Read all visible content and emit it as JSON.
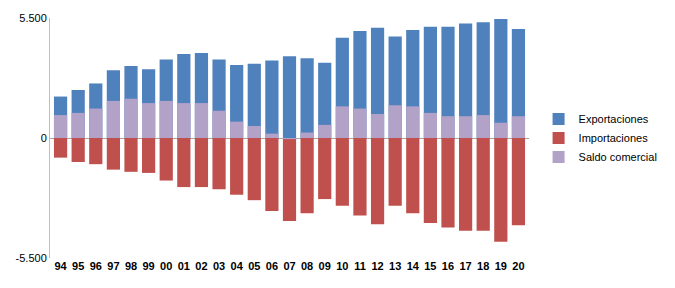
{
  "chart_data": {
    "type": "bar",
    "categories": [
      "94",
      "95",
      "96",
      "97",
      "98",
      "99",
      "00",
      "01",
      "02",
      "03",
      "04",
      "05",
      "06",
      "07",
      "08",
      "09",
      "10",
      "11",
      "12",
      "13",
      "14",
      "15",
      "16",
      "17",
      "18",
      "19",
      "20"
    ],
    "series": [
      {
        "name": "Exportaciones",
        "color": "#4f81bd",
        "values": [
          1900,
          2200,
          2500,
          3100,
          3300,
          3150,
          3600,
          3850,
          3900,
          3600,
          3350,
          3400,
          3550,
          3750,
          3650,
          3450,
          4600,
          4900,
          5050,
          4650,
          4950,
          5100,
          5100,
          5250,
          5300,
          5450,
          5000
        ]
      },
      {
        "name": "Importaciones",
        "color": "#c0504d",
        "values": [
          -900,
          -1100,
          -1200,
          -1450,
          -1550,
          -1600,
          -1950,
          -2250,
          -2250,
          -2350,
          -2600,
          -2850,
          -3350,
          -3800,
          -3450,
          -2800,
          -3100,
          -3550,
          -3950,
          -3100,
          -3450,
          -3900,
          -4100,
          -4250,
          -4250,
          -4750,
          -4000
        ]
      },
      {
        "name": "Saldo comercial",
        "color": "#b3a2c7",
        "values": [
          1050,
          1150,
          1350,
          1700,
          1800,
          1600,
          1700,
          1600,
          1600,
          1250,
          750,
          550,
          200,
          -50,
          250,
          600,
          1450,
          1350,
          1100,
          1500,
          1450,
          1150,
          1000,
          1000,
          1050,
          700,
          1000
        ]
      }
    ],
    "ylim": [
      -5500,
      5500
    ],
    "yticks": [
      {
        "value": -5500,
        "label": "-5.500"
      },
      0,
      {
        "value": 5500,
        "label": "5.500"
      }
    ],
    "grid": false,
    "stacked": false,
    "legend": "right"
  }
}
